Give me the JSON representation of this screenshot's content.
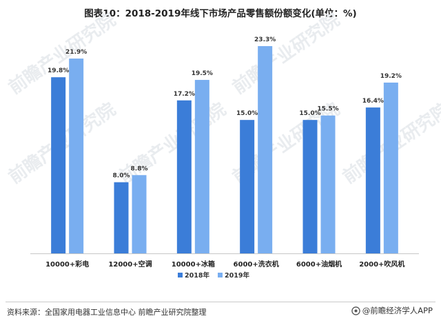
{
  "header": {
    "title": "图表10：2018-2019年线下市场产品零售额份额变化(单位：%)"
  },
  "footer": {
    "source": "资料来源：全国家用电器工业信息中心 前瞻产业研究院整理",
    "brand": "@前瞻经济学人APP"
  },
  "watermark": {
    "text": "前瞻产业研究院"
  },
  "colors": {
    "series_2018": "#3b7dd8",
    "series_2019": "#79aef0",
    "axis": "#c7c7c7"
  },
  "chart_data": {
    "type": "bar",
    "title": "图表10：2018-2019年线下市场产品零售额份额变化(单位：%)",
    "categories": [
      "10000+彩电",
      "12000+空调",
      "10000+冰箱",
      "6000+洗衣机",
      "6000+油烟机",
      "2000+吹风机"
    ],
    "series": [
      {
        "name": "2018年",
        "values": [
          19.8,
          8.0,
          17.2,
          15.0,
          15.0,
          16.4
        ],
        "labels": [
          "19.8%",
          "8.0%",
          "17.2%",
          "15.0%",
          "15.0%",
          "16.4%"
        ]
      },
      {
        "name": "2019年",
        "values": [
          21.9,
          8.8,
          19.5,
          23.3,
          15.5,
          19.2
        ],
        "labels": [
          "21.9%",
          "8.8%",
          "19.5%",
          "23.3%",
          "15.5%",
          "19.2%"
        ]
      }
    ],
    "ylim": [
      0,
      25
    ],
    "legend": "bottom-center",
    "grid": false
  }
}
